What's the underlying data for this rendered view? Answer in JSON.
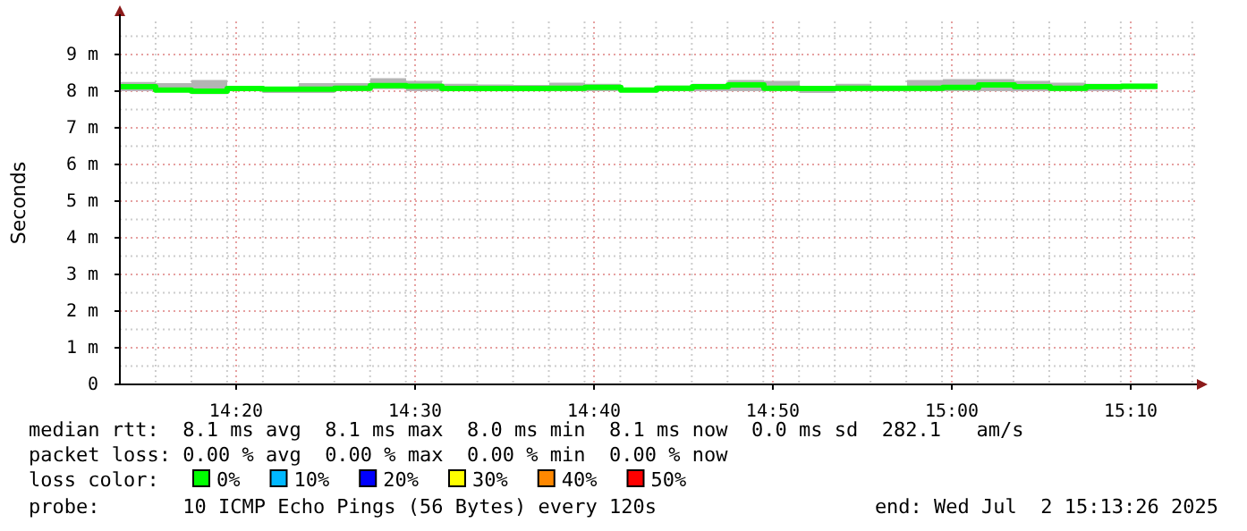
{
  "chart_data": {
    "type": "step",
    "ylabel": "Seconds",
    "legend_title": "loss color:",
    "x": [
      14.225,
      14.2583,
      14.2917,
      14.325,
      14.3583,
      14.3917,
      14.425,
      14.4583,
      14.4917,
      14.525,
      14.5583,
      14.5917,
      14.625,
      14.6583,
      14.6917,
      14.725,
      14.7583,
      14.7917,
      14.825,
      14.8583,
      14.8917,
      14.925,
      14.9583,
      14.9917,
      15.025,
      15.0583,
      15.0917,
      15.125,
      15.1583,
      15.1917
    ],
    "xlim": [
      14.225,
      15.23
    ],
    "xticks": [
      {
        "value": 14.3333,
        "label": "14:20"
      },
      {
        "value": 14.5,
        "label": "14:30"
      },
      {
        "value": 14.6667,
        "label": "14:40"
      },
      {
        "value": 14.8333,
        "label": "14:50"
      },
      {
        "value": 15,
        "label": "15:00"
      },
      {
        "value": 15.1667,
        "label": "15:10"
      }
    ],
    "ylim": [
      0,
      9.9
    ],
    "yticks": [
      0,
      {
        "value": 1,
        "label": "1 m"
      },
      {
        "value": 2,
        "label": "2 m"
      },
      {
        "value": 3,
        "label": "3 m"
      },
      {
        "value": 4,
        "label": "4 m"
      },
      {
        "value": 5,
        "label": "5 m"
      },
      {
        "value": 6,
        "label": "6 m"
      },
      {
        "value": 7,
        "label": "7 m"
      },
      {
        "value": 8,
        "label": "8 m"
      },
      {
        "value": 9,
        "label": "9 m"
      }
    ],
    "grid": true,
    "legend": "bottom",
    "series": [
      {
        "name": "0%",
        "color": "#00ff00",
        "values": [
          8.12,
          8.03,
          8.0,
          8.07,
          8.05,
          8.05,
          8.08,
          8.15,
          8.13,
          8.07,
          8.07,
          8.07,
          8.08,
          8.1,
          8.03,
          8.08,
          8.12,
          8.17,
          8.08,
          8.07,
          8.08,
          8.08,
          8.08,
          8.1,
          8.17,
          8.12,
          8.08,
          8.12,
          8.13,
          8.13
        ],
        "lower": [
          8.0,
          8.0,
          7.92,
          8.0,
          7.95,
          7.95,
          8.0,
          8.05,
          8.0,
          8.0,
          8.0,
          8.0,
          8.0,
          8.0,
          8.0,
          8.0,
          8.0,
          8.0,
          8.0,
          7.95,
          8.0,
          8.0,
          8.0,
          8.0,
          8.0,
          8.0,
          8.0,
          8.0,
          8.05,
          8.05
        ],
        "upper": [
          8.25,
          8.22,
          8.3,
          8.12,
          8.12,
          8.22,
          8.22,
          8.35,
          8.28,
          8.2,
          8.18,
          8.17,
          8.23,
          8.2,
          8.08,
          8.15,
          8.2,
          8.3,
          8.28,
          8.13,
          8.2,
          8.12,
          8.3,
          8.33,
          8.33,
          8.28,
          8.23,
          8.2,
          8.2,
          8.2
        ]
      },
      {
        "name": "10%",
        "color": "#00b8ff",
        "values": [
          null,
          null,
          null,
          null,
          null,
          null,
          null,
          null,
          null,
          null,
          null,
          null,
          null,
          null,
          null,
          null,
          null,
          null,
          null,
          null,
          null,
          null,
          null,
          null,
          null,
          null,
          null,
          null,
          null,
          null
        ]
      },
      {
        "name": "20%",
        "color": "#0000ff",
        "values": [
          null,
          null,
          null,
          null,
          null,
          null,
          null,
          null,
          null,
          null,
          null,
          null,
          null,
          null,
          null,
          null,
          null,
          null,
          null,
          null,
          null,
          null,
          null,
          null,
          null,
          null,
          null,
          null,
          null,
          null
        ]
      },
      {
        "name": "30%",
        "color": "#ffff00",
        "values": [
          null,
          null,
          null,
          null,
          null,
          null,
          null,
          null,
          null,
          null,
          null,
          null,
          null,
          null,
          null,
          null,
          null,
          null,
          null,
          null,
          null,
          null,
          null,
          null,
          null,
          null,
          null,
          null,
          null,
          null
        ]
      },
      {
        "name": "40%",
        "color": "#ff8800",
        "values": [
          null,
          null,
          null,
          null,
          null,
          null,
          null,
          null,
          null,
          null,
          null,
          null,
          null,
          null,
          null,
          null,
          null,
          null,
          null,
          null,
          null,
          null,
          null,
          null,
          null,
          null,
          null,
          null,
          null,
          null
        ]
      },
      {
        "name": "50%",
        "color": "#ff0000",
        "values": [
          null,
          null,
          null,
          null,
          null,
          null,
          null,
          null,
          null,
          null,
          null,
          null,
          null,
          null,
          null,
          null,
          null,
          null,
          null,
          null,
          null,
          null,
          null,
          null,
          null,
          null,
          null,
          null,
          null,
          null
        ]
      }
    ],
    "annotations": [
      "median rtt:  8.1 ms avg  8.1 ms max  8.0 ms min  8.1 ms now  0.0 ms sd  282.1   am/s",
      "packet loss: 0.00 % avg  0.00 % max  0.00 % min  0.00 % now",
      "probe:       10 ICMP Echo Pings (56 Bytes) every 120s",
      "end: Wed Jul  2 15:13:26 2025"
    ]
  }
}
